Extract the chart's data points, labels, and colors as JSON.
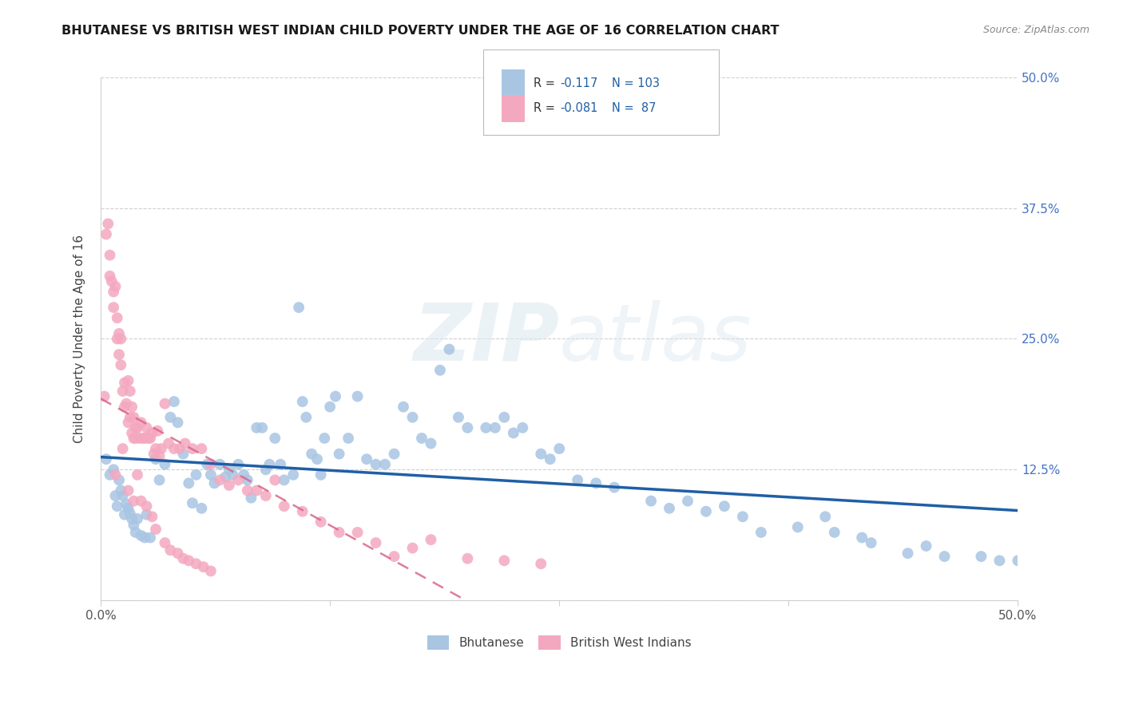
{
  "title": "BHUTANESE VS BRITISH WEST INDIAN CHILD POVERTY UNDER THE AGE OF 16 CORRELATION CHART",
  "source": "Source: ZipAtlas.com",
  "ylabel": "Child Poverty Under the Age of 16",
  "ytick_vals": [
    0.0,
    0.125,
    0.25,
    0.375,
    0.5
  ],
  "ytick_labels": [
    "",
    "12.5%",
    "25.0%",
    "37.5%",
    "50.0%"
  ],
  "xlim": [
    0.0,
    0.5
  ],
  "ylim": [
    0.0,
    0.5
  ],
  "watermark_zip": "ZIP",
  "watermark_atlas": "atlas",
  "blue_color": "#a8c5e2",
  "pink_color": "#f4a8c0",
  "blue_line_color": "#1f5fa6",
  "pink_line_color": "#d9668a",
  "grid_color": "#d0d0d0",
  "bhutanese_x": [
    0.003,
    0.005,
    0.007,
    0.008,
    0.009,
    0.01,
    0.011,
    0.012,
    0.013,
    0.014,
    0.015,
    0.016,
    0.017,
    0.018,
    0.019,
    0.02,
    0.022,
    0.024,
    0.025,
    0.027,
    0.03,
    0.032,
    0.035,
    0.038,
    0.04,
    0.042,
    0.045,
    0.048,
    0.05,
    0.052,
    0.055,
    0.058,
    0.06,
    0.062,
    0.065,
    0.068,
    0.07,
    0.072,
    0.075,
    0.078,
    0.08,
    0.082,
    0.085,
    0.088,
    0.09,
    0.092,
    0.095,
    0.098,
    0.1,
    0.105,
    0.108,
    0.11,
    0.112,
    0.115,
    0.118,
    0.12,
    0.122,
    0.125,
    0.128,
    0.13,
    0.135,
    0.14,
    0.145,
    0.15,
    0.155,
    0.16,
    0.165,
    0.17,
    0.175,
    0.18,
    0.185,
    0.19,
    0.195,
    0.2,
    0.21,
    0.215,
    0.22,
    0.225,
    0.23,
    0.24,
    0.245,
    0.25,
    0.26,
    0.27,
    0.28,
    0.3,
    0.31,
    0.32,
    0.33,
    0.34,
    0.35,
    0.36,
    0.38,
    0.4,
    0.42,
    0.44,
    0.46,
    0.48,
    0.49,
    0.5,
    0.395,
    0.415,
    0.45
  ],
  "bhutanese_y": [
    0.135,
    0.12,
    0.125,
    0.1,
    0.09,
    0.115,
    0.105,
    0.1,
    0.082,
    0.092,
    0.088,
    0.083,
    0.078,
    0.072,
    0.065,
    0.078,
    0.062,
    0.06,
    0.082,
    0.06,
    0.135,
    0.115,
    0.13,
    0.175,
    0.19,
    0.17,
    0.14,
    0.112,
    0.093,
    0.12,
    0.088,
    0.13,
    0.12,
    0.112,
    0.13,
    0.118,
    0.125,
    0.12,
    0.13,
    0.12,
    0.115,
    0.098,
    0.165,
    0.165,
    0.125,
    0.13,
    0.155,
    0.13,
    0.115,
    0.12,
    0.28,
    0.19,
    0.175,
    0.14,
    0.135,
    0.12,
    0.155,
    0.185,
    0.195,
    0.14,
    0.155,
    0.195,
    0.135,
    0.13,
    0.13,
    0.14,
    0.185,
    0.175,
    0.155,
    0.15,
    0.22,
    0.24,
    0.175,
    0.165,
    0.165,
    0.165,
    0.175,
    0.16,
    0.165,
    0.14,
    0.135,
    0.145,
    0.115,
    0.112,
    0.108,
    0.095,
    0.088,
    0.095,
    0.085,
    0.09,
    0.08,
    0.065,
    0.07,
    0.065,
    0.055,
    0.045,
    0.042,
    0.042,
    0.038,
    0.038,
    0.08,
    0.06,
    0.052
  ],
  "bwi_x": [
    0.002,
    0.003,
    0.004,
    0.005,
    0.005,
    0.006,
    0.007,
    0.007,
    0.008,
    0.009,
    0.009,
    0.01,
    0.01,
    0.011,
    0.011,
    0.012,
    0.013,
    0.013,
    0.014,
    0.015,
    0.015,
    0.016,
    0.016,
    0.017,
    0.017,
    0.018,
    0.018,
    0.019,
    0.019,
    0.02,
    0.021,
    0.022,
    0.023,
    0.024,
    0.025,
    0.026,
    0.027,
    0.028,
    0.029,
    0.03,
    0.031,
    0.032,
    0.033,
    0.035,
    0.037,
    0.04,
    0.043,
    0.046,
    0.05,
    0.055,
    0.06,
    0.065,
    0.07,
    0.075,
    0.08,
    0.085,
    0.09,
    0.095,
    0.1,
    0.11,
    0.12,
    0.13,
    0.14,
    0.15,
    0.16,
    0.17,
    0.18,
    0.2,
    0.22,
    0.24,
    0.008,
    0.012,
    0.015,
    0.018,
    0.02,
    0.022,
    0.025,
    0.028,
    0.03,
    0.035,
    0.038,
    0.042,
    0.045,
    0.048,
    0.052,
    0.056,
    0.06
  ],
  "bwi_y": [
    0.195,
    0.35,
    0.36,
    0.33,
    0.31,
    0.305,
    0.295,
    0.28,
    0.3,
    0.25,
    0.27,
    0.255,
    0.235,
    0.225,
    0.25,
    0.2,
    0.208,
    0.185,
    0.188,
    0.21,
    0.17,
    0.2,
    0.175,
    0.185,
    0.16,
    0.155,
    0.175,
    0.155,
    0.165,
    0.165,
    0.155,
    0.17,
    0.155,
    0.155,
    0.165,
    0.155,
    0.155,
    0.16,
    0.14,
    0.145,
    0.162,
    0.138,
    0.145,
    0.188,
    0.15,
    0.145,
    0.145,
    0.15,
    0.145,
    0.145,
    0.13,
    0.115,
    0.11,
    0.115,
    0.105,
    0.105,
    0.1,
    0.115,
    0.09,
    0.085,
    0.075,
    0.065,
    0.065,
    0.055,
    0.042,
    0.05,
    0.058,
    0.04,
    0.038,
    0.035,
    0.12,
    0.145,
    0.105,
    0.095,
    0.12,
    0.095,
    0.09,
    0.08,
    0.068,
    0.055,
    0.048,
    0.045,
    0.04,
    0.038,
    0.035,
    0.032,
    0.028
  ]
}
